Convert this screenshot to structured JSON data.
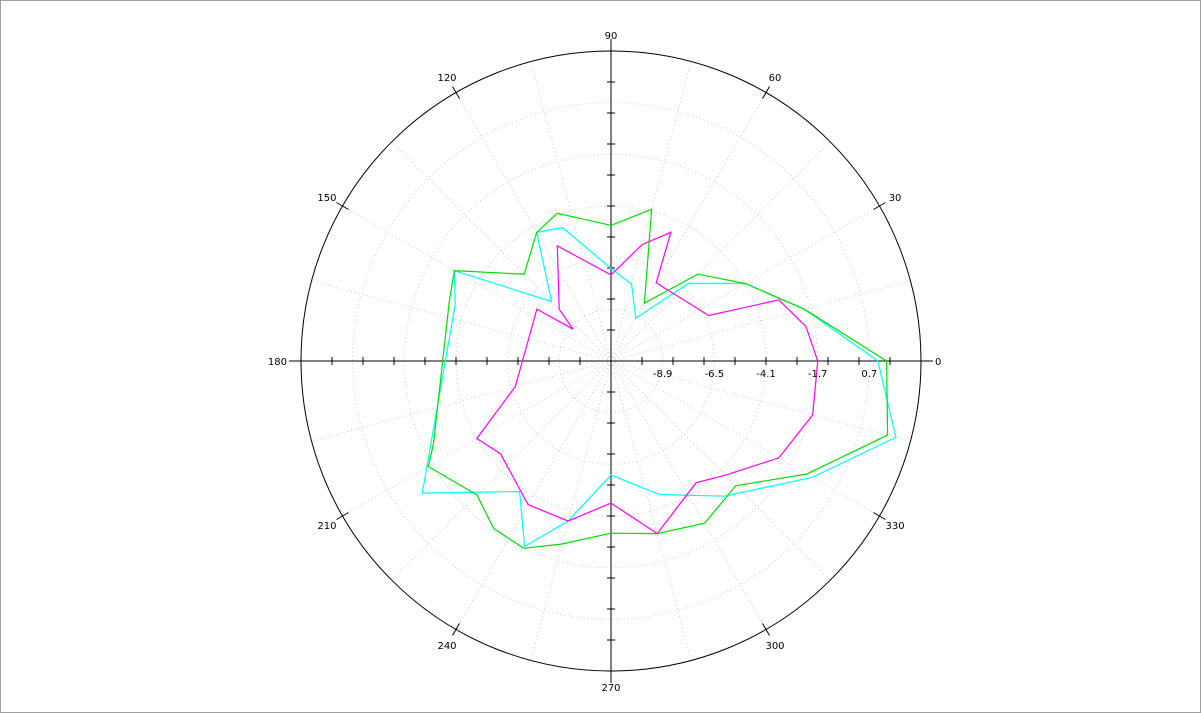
{
  "chart_data": {
    "type": "polar-line",
    "title": "",
    "angle_unit": "degrees",
    "angle_labels": [
      "0",
      "30",
      "60",
      "90",
      "120",
      "150",
      "180",
      "210",
      "240",
      "270",
      "300",
      "330"
    ],
    "radial_tick_labels": [
      "-8.9",
      "-6.5",
      "-4.1",
      "-1.7",
      "0.7"
    ],
    "radial_range": [
      -11.3,
      3.1
    ],
    "grid": "dotted",
    "series": [
      {
        "color": "#00ffff",
        "points": [
          [
            0,
            1.1
          ],
          [
            15,
            -2.0
          ],
          [
            30,
            -4.1
          ],
          [
            45,
            -6.2
          ],
          [
            60,
            -9.0
          ],
          [
            75,
            -7.6
          ],
          [
            90,
            -7.0
          ],
          [
            110,
            -4.7
          ],
          [
            120,
            -4.4
          ],
          [
            135,
            -7.4
          ],
          [
            150,
            -2.9
          ],
          [
            160,
            -3.6
          ],
          [
            215,
            -0.6
          ],
          [
            235,
            -3.9
          ],
          [
            245,
            -1.8
          ],
          [
            255,
            -3.6
          ],
          [
            270,
            -6.0
          ],
          [
            290,
            -4.7
          ],
          [
            310,
            -3.1
          ],
          [
            330,
            -0.5
          ],
          [
            345,
            2.4
          ],
          [
            360,
            1.1
          ]
        ]
      },
      {
        "color": "#00dd00",
        "points": [
          [
            0,
            1.5
          ],
          [
            15,
            -2.0
          ],
          [
            30,
            -4.1
          ],
          [
            45,
            -5.6
          ],
          [
            60,
            -8.2
          ],
          [
            75,
            -4.0
          ],
          [
            90,
            -5.0
          ],
          [
            110,
            -4.0
          ],
          [
            120,
            -4.4
          ],
          [
            135,
            -5.6
          ],
          [
            150,
            -2.9
          ],
          [
            160,
            -3.3
          ],
          [
            205,
            -2.2
          ],
          [
            210,
            -1.5
          ],
          [
            225,
            -2.5
          ],
          [
            235,
            -1.8
          ],
          [
            245,
            -1.7
          ],
          [
            255,
            -2.5
          ],
          [
            270,
            -3.3
          ],
          [
            285,
            -3.0
          ],
          [
            300,
            -2.6
          ],
          [
            315,
            -3.1
          ],
          [
            330,
            -0.8
          ],
          [
            345,
            2.0
          ],
          [
            360,
            1.5
          ]
        ]
      },
      {
        "color": "#ff00ff",
        "points": [
          [
            0,
            -1.7
          ],
          [
            10,
            -2.1
          ],
          [
            20,
            -3.0
          ],
          [
            25,
            -6.3
          ],
          [
            60,
            -7.1
          ],
          [
            65,
            -4.7
          ],
          [
            75,
            -5.7
          ],
          [
            90,
            -7.3
          ],
          [
            115,
            -5.4
          ],
          [
            135,
            -7.9
          ],
          [
            140,
            -9.0
          ],
          [
            145,
            -7.1
          ],
          [
            195,
            -6.7
          ],
          [
            210,
            -4.1
          ],
          [
            220,
            -4.6
          ],
          [
            240,
            -3.6
          ],
          [
            255,
            -3.6
          ],
          [
            270,
            -4.7
          ],
          [
            285,
            -3.0
          ],
          [
            305,
            -4.4
          ],
          [
            315,
            -3.8
          ],
          [
            330,
            -2.3
          ],
          [
            345,
            -1.6
          ],
          [
            360,
            -1.7
          ]
        ]
      }
    ]
  }
}
